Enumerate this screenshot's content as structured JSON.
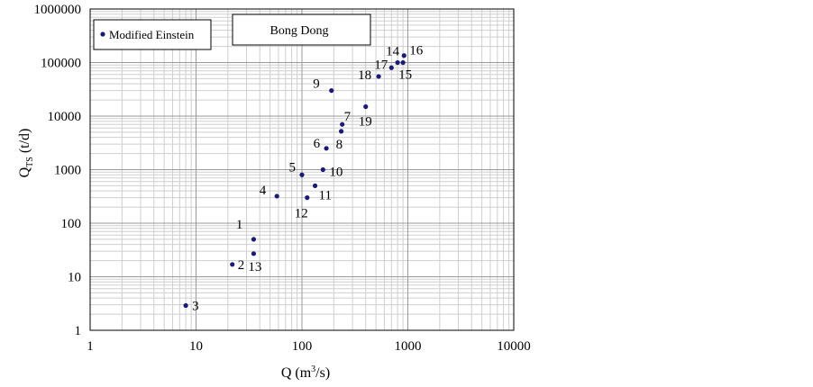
{
  "chart_data": {
    "type": "scatter",
    "xscale": "log",
    "yscale": "log",
    "xlim": [
      1,
      10000
    ],
    "ylim": [
      1,
      1000000
    ],
    "grid": true,
    "x_ticks": [
      "1",
      "10",
      "100",
      "1000",
      "10000"
    ],
    "y_ticks": [
      "1",
      "10",
      "100",
      "1000",
      "10000",
      "100000",
      "1000000"
    ],
    "xlabel": {
      "main": "Q (m",
      "sup": "3",
      "tail": "/s)"
    },
    "ylabel": {
      "main": "Q",
      "sub": "TS",
      "tail": " (t/d)"
    },
    "legend": {
      "label": "Modified Einstein",
      "position": "top-left"
    },
    "station_box": "Bong Dong",
    "marker_color": "#1a1a7a",
    "series": [
      {
        "name": "Modified Einstein",
        "points": [
          {
            "label": "1",
            "x": 35,
            "y": 50
          },
          {
            "label": "2",
            "x": 22,
            "y": 17
          },
          {
            "label": "3",
            "x": 8,
            "y": 2.9
          },
          {
            "label": "4",
            "x": 58,
            "y": 320
          },
          {
            "label": "5",
            "x": 100,
            "y": 800
          },
          {
            "label": "6",
            "x": 170,
            "y": 2500
          },
          {
            "label": "7",
            "x": 240,
            "y": 7000
          },
          {
            "label": "8",
            "x": 235,
            "y": 5200
          },
          {
            "label": "9",
            "x": 190,
            "y": 30000
          },
          {
            "label": "10",
            "x": 158,
            "y": 1000
          },
          {
            "label": "11",
            "x": 133,
            "y": 500
          },
          {
            "label": "12",
            "x": 112,
            "y": 300
          },
          {
            "label": "13",
            "x": 35,
            "y": 27
          },
          {
            "label": "14",
            "x": 800,
            "y": 100000
          },
          {
            "label": "15",
            "x": 900,
            "y": 100000
          },
          {
            "label": "16",
            "x": 920,
            "y": 135000
          },
          {
            "label": "17",
            "x": 700,
            "y": 80000
          },
          {
            "label": "18",
            "x": 530,
            "y": 55000
          },
          {
            "label": "19",
            "x": 400,
            "y": 15000
          }
        ]
      }
    ]
  }
}
